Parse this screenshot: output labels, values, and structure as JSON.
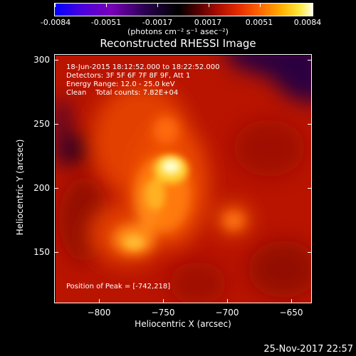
{
  "colorbar": {
    "ticks": [
      "-0.0084",
      "-0.0051",
      "-0.0017",
      "0.0017",
      "0.0051",
      "0.0084"
    ],
    "units": "(photons cm⁻² s⁻¹ asec⁻²)"
  },
  "title": "Reconstructed RHESSI Image",
  "info": {
    "time": "18-Jun-2015 18:12:52.000 to 18:22:52.000",
    "detectors": "Detectors: 3F 5F 6F 7F 8F 9F, Att 1",
    "energy": "Energy Range: 12.0 - 25.0 keV",
    "clean": "Clean    Total counts: 7.82E+04"
  },
  "peak": "Position of Peak = [-742,218]",
  "axes": {
    "xlabel": "Heliocentric X (arcsec)",
    "ylabel": "Heliocentric Y (arcsec)",
    "xticks": [
      "−800",
      "−750",
      "−700",
      "−650"
    ],
    "yticks": [
      "300",
      "250",
      "200",
      "150"
    ],
    "xrange": [
      -835,
      -635
    ],
    "yrange": [
      110,
      305
    ]
  },
  "footer": "25-Nov-2017 22:57",
  "colors": {
    "background": "#000000",
    "accent": "#ffffff"
  }
}
